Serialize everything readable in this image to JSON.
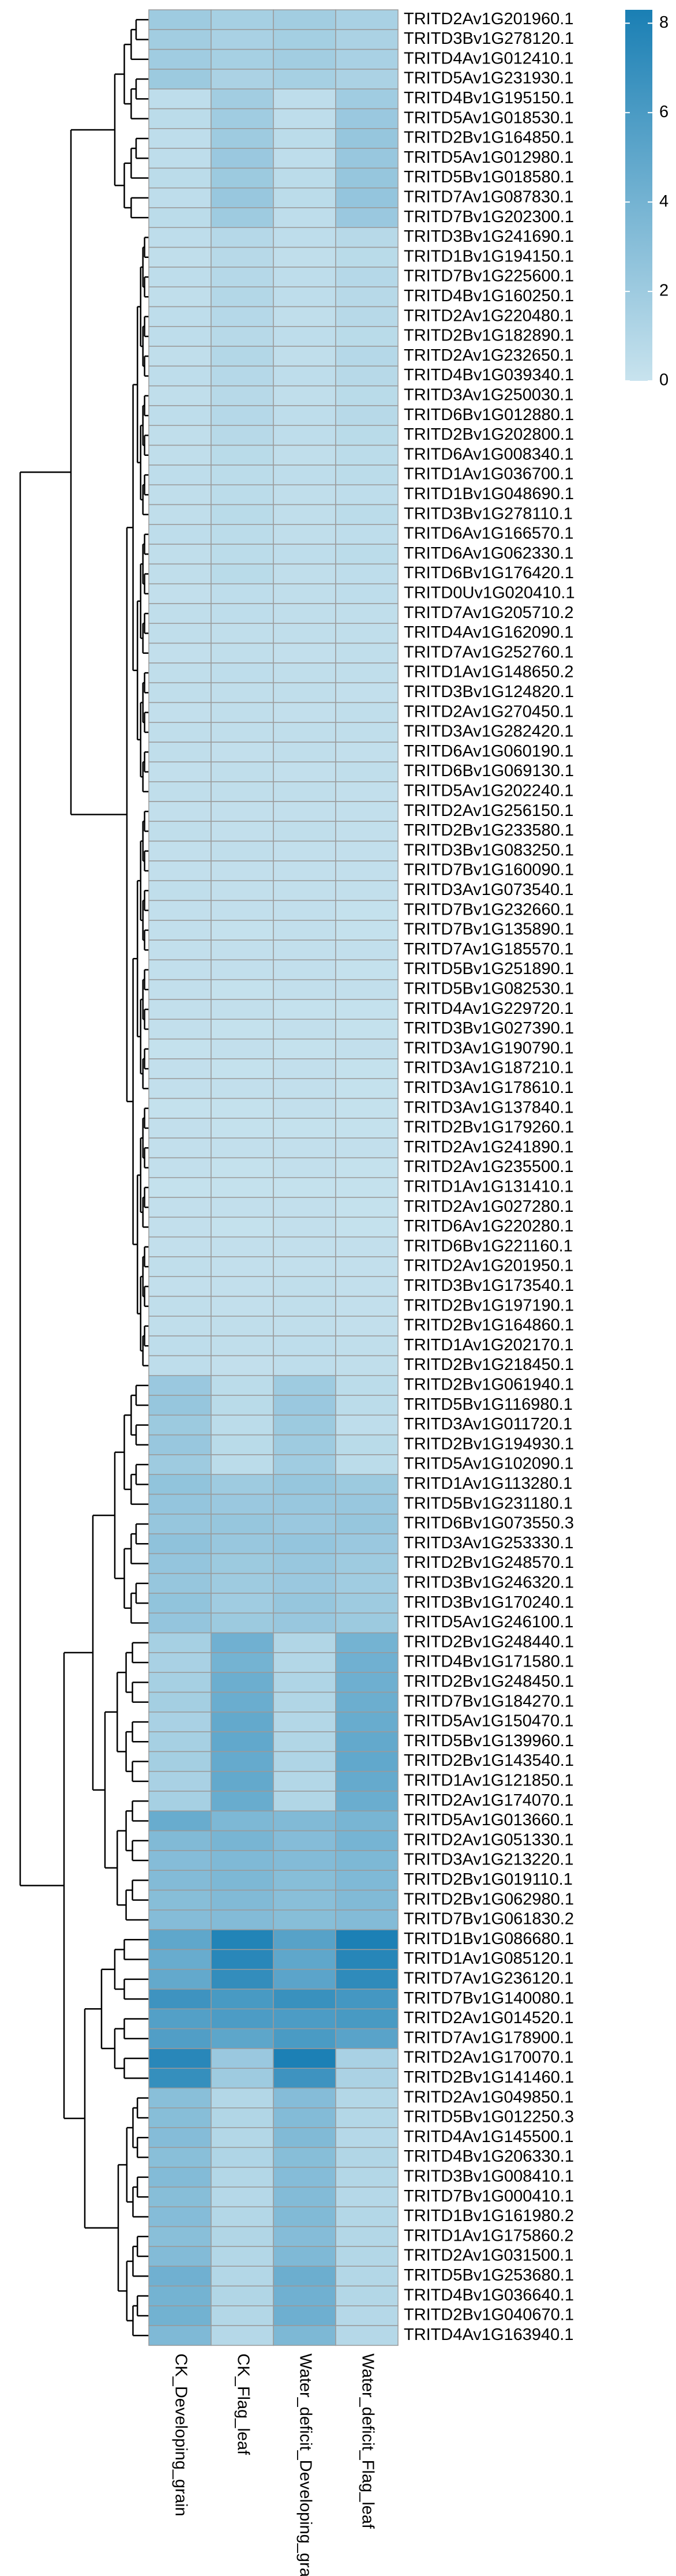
{
  "chart_data": {
    "type": "heatmap",
    "columns": [
      "CK_Developing_grain",
      "CK_Flag_leaf",
      "Water_deficit_Developing_grain",
      "Water_deficit_Flag_leaf"
    ],
    "rows": [
      "TRITD2Av1G201960.1",
      "TRITD3Bv1G278120.1",
      "TRITD4Av1G012410.1",
      "TRITD5Av1G231930.1",
      "TRITD4Bv1G195150.1",
      "TRITD5Av1G018530.1",
      "TRITD2Bv1G164850.1",
      "TRITD5Av1G012980.1",
      "TRITD5Bv1G018580.1",
      "TRITD7Av1G087830.1",
      "TRITD7Bv1G202300.1",
      "TRITD3Bv1G241690.1",
      "TRITD1Bv1G194150.1",
      "TRITD7Bv1G225600.1",
      "TRITD4Bv1G160250.1",
      "TRITD2Av1G220480.1",
      "TRITD2Bv1G182890.1",
      "TRITD2Av1G232650.1",
      "TRITD4Bv1G039340.1",
      "TRITD3Av1G250030.1",
      "TRITD6Bv1G012880.1",
      "TRITD2Bv1G202800.1",
      "TRITD6Av1G008340.1",
      "TRITD1Av1G036700.1",
      "TRITD1Bv1G048690.1",
      "TRITD3Bv1G278110.1",
      "TRITD6Av1G166570.1",
      "TRITD6Av1G062330.1",
      "TRITD6Bv1G176420.1",
      "TRITD0Uv1G020410.1",
      "TRITD7Av1G205710.2",
      "TRITD4Av1G162090.1",
      "TRITD7Av1G252760.1",
      "TRITD1Av1G148650.2",
      "TRITD3Bv1G124820.1",
      "TRITD2Av1G270450.1",
      "TRITD3Av1G282420.1",
      "TRITD6Av1G060190.1",
      "TRITD6Bv1G069130.1",
      "TRITD5Av1G202240.1",
      "TRITD2Av1G256150.1",
      "TRITD2Bv1G233580.1",
      "TRITD3Bv1G083250.1",
      "TRITD7Bv1G160090.1",
      "TRITD3Av1G073540.1",
      "TRITD7Bv1G232660.1",
      "TRITD7Bv1G135890.1",
      "TRITD7Av1G185570.1",
      "TRITD5Bv1G251890.1",
      "TRITD5Bv1G082530.1",
      "TRITD4Av1G229720.1",
      "TRITD3Bv1G027390.1",
      "TRITD3Av1G190790.1",
      "TRITD3Av1G187210.1",
      "TRITD3Av1G178610.1",
      "TRITD3Av1G137840.1",
      "TRITD2Bv1G179260.1",
      "TRITD2Av1G241890.1",
      "TRITD2Av1G235500.1",
      "TRITD1Av1G131410.1",
      "TRITD2Av1G027280.1",
      "TRITD6Av1G220280.1",
      "TRITD6Bv1G221160.1",
      "TRITD2Av1G201950.1",
      "TRITD3Bv1G173540.1",
      "TRITD2Bv1G197190.1",
      "TRITD2Bv1G164860.1",
      "TRITD1Av1G202170.1",
      "TRITD2Bv1G218450.1",
      "TRITD2Bv1G061940.1",
      "TRITD5Bv1G116980.1",
      "TRITD3Av1G011720.1",
      "TRITD2Bv1G194930.1",
      "TRITD5Av1G102090.1",
      "TRITD1Av1G113280.1",
      "TRITD5Bv1G231180.1",
      "TRITD6Bv1G073550.3",
      "TRITD3Av1G253330.1",
      "TRITD2Bv1G248570.1",
      "TRITD3Bv1G246320.1",
      "TRITD3Bv1G170240.1",
      "TRITD5Av1G246100.1",
      "TRITD2Bv1G248440.1",
      "TRITD4Bv1G171580.1",
      "TRITD2Bv1G248450.1",
      "TRITD7Bv1G184270.1",
      "TRITD5Av1G150470.1",
      "TRITD5Bv1G139960.1",
      "TRITD2Bv1G143540.1",
      "TRITD1Av1G121850.1",
      "TRITD2Av1G174070.1",
      "TRITD5Av1G013660.1",
      "TRITD2Av1G051330.1",
      "TRITD3Av1G213220.1",
      "TRITD2Bv1G019110.1",
      "TRITD2Bv1G062980.1",
      "TRITD7Bv1G061830.2",
      "TRITD1Bv1G086680.1",
      "TRITD1Av1G085120.1",
      "TRITD7Av1G236120.1",
      "TRITD7Bv1G140080.1",
      "TRITD2Av1G014520.1",
      "TRITD7Av1G178900.1",
      "TRITD2Av1G170070.1",
      "TRITD2Bv1G141460.1",
      "TRITD2Av1G049850.1",
      "TRITD5Bv1G012250.3",
      "TRITD4Av1G145500.1",
      "TRITD4Bv1G206330.1",
      "TRITD3Bv1G008410.1",
      "TRITD7Bv1G000410.1",
      "TRITD1Bv1G161980.2",
      "TRITD1Av1G175860.2",
      "TRITD2Av1G031500.1",
      "TRITD5Bv1G253680.1",
      "TRITD4Bv1G036640.1",
      "TRITD2Bv1G040670.1",
      "TRITD4Av1G163940.1"
    ],
    "values": [
      [
        2.0,
        1.6,
        1.8,
        1.5
      ],
      [
        1.8,
        1.5,
        1.7,
        1.4
      ],
      [
        1.9,
        1.6,
        1.8,
        1.5
      ],
      [
        2.1,
        1.4,
        1.6,
        1.4
      ],
      [
        0.5,
        1.8,
        0.5,
        1.9
      ],
      [
        0.6,
        1.9,
        0.5,
        2.2
      ],
      [
        0.5,
        2.0,
        0.6,
        2.4
      ],
      [
        0.5,
        2.2,
        0.5,
        2.3
      ],
      [
        0.6,
        2.1,
        0.6,
        2.4
      ],
      [
        0.5,
        2.3,
        0.6,
        2.5
      ],
      [
        0.6,
        2.0,
        0.5,
        2.2
      ],
      [
        0.5,
        0.9,
        0.5,
        0.8
      ],
      [
        0.4,
        0.8,
        0.4,
        0.7
      ],
      [
        0.5,
        0.9,
        0.5,
        0.9
      ],
      [
        0.4,
        1.0,
        0.5,
        0.8
      ],
      [
        0.5,
        0.9,
        0.4,
        0.8
      ],
      [
        0.5,
        0.8,
        0.5,
        0.7
      ],
      [
        0.4,
        1.0,
        0.4,
        0.9
      ],
      [
        0.5,
        0.9,
        0.5,
        0.8
      ],
      [
        0.4,
        0.8,
        0.4,
        0.7
      ],
      [
        0.5,
        0.9,
        0.5,
        0.8
      ],
      [
        0.4,
        0.8,
        0.5,
        0.7
      ],
      [
        0.4,
        0.7,
        0.4,
        0.6
      ],
      [
        0.5,
        0.6,
        0.5,
        0.6
      ],
      [
        0.4,
        0.6,
        0.4,
        0.5
      ],
      [
        0.4,
        0.7,
        0.4,
        0.6
      ],
      [
        0.5,
        0.6,
        0.4,
        0.5
      ],
      [
        0.4,
        0.6,
        0.5,
        0.6
      ],
      [
        0.4,
        0.7,
        0.4,
        0.5
      ],
      [
        0.3,
        0.5,
        0.4,
        0.5
      ],
      [
        0.4,
        0.5,
        0.4,
        0.4
      ],
      [
        0.4,
        0.4,
        0.4,
        0.4
      ],
      [
        0.3,
        0.4,
        0.3,
        0.4
      ],
      [
        0.4,
        0.5,
        0.4,
        0.4
      ],
      [
        0.4,
        0.4,
        0.4,
        0.3
      ],
      [
        0.3,
        0.4,
        0.3,
        0.4
      ],
      [
        0.4,
        0.4,
        0.4,
        0.4
      ],
      [
        0.4,
        0.3,
        0.4,
        0.3
      ],
      [
        0.3,
        0.4,
        0.3,
        0.4
      ],
      [
        0.4,
        0.4,
        0.4,
        0.3
      ],
      [
        0.3,
        0.3,
        0.3,
        0.3
      ],
      [
        0.4,
        0.3,
        0.4,
        0.3
      ],
      [
        0.3,
        0.4,
        0.3,
        0.3
      ],
      [
        0.3,
        0.3,
        0.3,
        0.3
      ],
      [
        0.4,
        0.3,
        0.3,
        0.3
      ],
      [
        0.3,
        0.3,
        0.3,
        0.2
      ],
      [
        0.3,
        0.2,
        0.3,
        0.2
      ],
      [
        0.3,
        0.3,
        0.3,
        0.3
      ],
      [
        0.3,
        0.3,
        0.3,
        0.2
      ],
      [
        0.3,
        0.2,
        0.3,
        0.3
      ],
      [
        0.3,
        0.3,
        0.2,
        0.2
      ],
      [
        0.3,
        0.2,
        0.3,
        0.2
      ],
      [
        0.2,
        0.3,
        0.2,
        0.3
      ],
      [
        0.3,
        0.2,
        0.3,
        0.2
      ],
      [
        0.3,
        0.3,
        0.3,
        0.2
      ],
      [
        0.2,
        0.2,
        0.3,
        0.2
      ],
      [
        0.3,
        0.2,
        0.2,
        0.2
      ],
      [
        0.3,
        0.3,
        0.3,
        0.3
      ],
      [
        0.3,
        0.2,
        0.3,
        0.2
      ],
      [
        0.2,
        0.2,
        0.2,
        0.2
      ],
      [
        0.3,
        0.3,
        0.3,
        0.2
      ],
      [
        0.3,
        0.2,
        0.3,
        0.2
      ],
      [
        0.3,
        0.3,
        0.3,
        0.3
      ],
      [
        0.4,
        0.3,
        0.3,
        0.3
      ],
      [
        0.3,
        0.3,
        0.4,
        0.3
      ],
      [
        0.4,
        0.3,
        0.4,
        0.3
      ],
      [
        0.4,
        0.4,
        0.4,
        0.3
      ],
      [
        0.5,
        0.4,
        0.5,
        0.4
      ],
      [
        0.5,
        0.3,
        0.5,
        0.4
      ],
      [
        2.2,
        0.6,
        2.0,
        0.6
      ],
      [
        2.4,
        0.7,
        2.2,
        0.6
      ],
      [
        2.1,
        0.6,
        2.1,
        0.5
      ],
      [
        2.3,
        0.7,
        2.0,
        0.7
      ],
      [
        2.0,
        0.6,
        1.9,
        0.6
      ],
      [
        2.6,
        2.0,
        2.4,
        2.1
      ],
      [
        2.5,
        2.2,
        2.3,
        2.3
      ],
      [
        2.4,
        2.4,
        2.2,
        2.4
      ],
      [
        2.7,
        2.3,
        2.5,
        2.2
      ],
      [
        2.5,
        2.1,
        2.3,
        2.0
      ],
      [
        2.4,
        2.0,
        2.2,
        1.9
      ],
      [
        2.6,
        1.9,
        2.4,
        2.0
      ],
      [
        2.5,
        2.1,
        2.3,
        2.1
      ],
      [
        1.6,
        4.2,
        1.1,
        4.0
      ],
      [
        1.5,
        4.0,
        1.0,
        4.2
      ],
      [
        1.6,
        4.4,
        1.2,
        4.3
      ],
      [
        1.7,
        4.5,
        1.1,
        4.4
      ],
      [
        1.5,
        4.8,
        1.0,
        4.6
      ],
      [
        1.6,
        4.9,
        1.1,
        4.8
      ],
      [
        1.7,
        4.7,
        1.2,
        4.9
      ],
      [
        1.5,
        4.8,
        1.0,
        4.7
      ],
      [
        1.6,
        4.6,
        1.1,
        4.5
      ],
      [
        4.6,
        3.6,
        3.4,
        3.8
      ],
      [
        3.4,
        3.8,
        3.2,
        3.9
      ],
      [
        3.2,
        3.5,
        3.3,
        3.6
      ],
      [
        3.3,
        3.6,
        3.1,
        3.5
      ],
      [
        3.1,
        3.4,
        3.0,
        3.4
      ],
      [
        3.2,
        3.3,
        3.1,
        3.3
      ],
      [
        5.0,
        7.9,
        5.4,
        8.2
      ],
      [
        4.6,
        7.6,
        5.0,
        7.7
      ],
      [
        4.8,
        7.1,
        5.2,
        7.3
      ],
      [
        6.6,
        6.1,
        6.8,
        6.3
      ],
      [
        5.6,
        5.9,
        5.9,
        6.1
      ],
      [
        5.7,
        5.1,
        6.0,
        5.3
      ],
      [
        7.6,
        2.2,
        8.2,
        1.5
      ],
      [
        7.0,
        2.0,
        6.6,
        1.4
      ],
      [
        3.0,
        1.0,
        3.2,
        1.0
      ],
      [
        3.1,
        1.1,
        3.3,
        1.0
      ],
      [
        3.2,
        1.0,
        3.4,
        0.9
      ],
      [
        3.0,
        1.2,
        3.1,
        1.1
      ],
      [
        3.3,
        1.0,
        3.2,
        1.0
      ],
      [
        3.1,
        0.9,
        3.3,
        0.9
      ],
      [
        3.2,
        1.0,
        3.4,
        1.0
      ],
      [
        3.0,
        1.1,
        3.2,
        1.0
      ],
      [
        3.3,
        1.0,
        3.5,
        1.0
      ],
      [
        4.2,
        1.0,
        4.4,
        1.0
      ],
      [
        4.0,
        1.1,
        4.2,
        1.0
      ],
      [
        4.1,
        1.0,
        4.3,
        0.9
      ],
      [
        3.5,
        0.9,
        3.6,
        0.9
      ]
    ],
    "colorbar": {
      "lim": [
        0,
        8.3
      ],
      "ticks": [
        0,
        2,
        4,
        6,
        8
      ],
      "colors": [
        "#c8e3ee",
        "#1a7fb4"
      ]
    }
  }
}
